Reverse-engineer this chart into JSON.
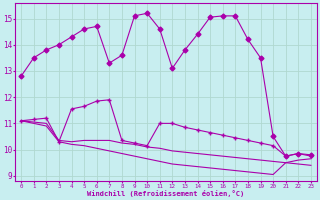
{
  "xlabel": "Windchill (Refroidissement éolien,°C)",
  "background_color": "#c8eef0",
  "grid_color": "#b0d8d0",
  "line_color": "#aa00aa",
  "xlim": [
    -0.5,
    23.5
  ],
  "ylim": [
    8.8,
    15.6
  ],
  "yticks": [
    9,
    10,
    11,
    12,
    13,
    14,
    15
  ],
  "xticks": [
    0,
    1,
    2,
    3,
    4,
    5,
    6,
    7,
    8,
    9,
    10,
    11,
    12,
    13,
    14,
    15,
    16,
    17,
    18,
    19,
    20,
    21,
    22,
    23
  ],
  "series1_x": [
    0,
    1,
    2,
    3,
    4,
    5,
    6,
    7,
    8,
    9,
    10,
    11,
    12,
    13,
    14,
    15,
    16,
    17,
    18,
    19,
    20,
    21,
    22,
    23
  ],
  "series1_y": [
    12.8,
    13.5,
    13.8,
    14.0,
    14.3,
    14.6,
    14.7,
    13.3,
    13.6,
    15.1,
    15.2,
    14.6,
    13.1,
    13.8,
    14.4,
    15.05,
    15.1,
    15.1,
    14.2,
    13.5,
    10.5,
    9.75,
    9.85,
    9.8
  ],
  "series2_x": [
    0,
    1,
    2,
    3,
    4,
    5,
    6,
    7,
    8,
    9,
    10,
    11,
    12,
    13,
    14,
    15,
    16,
    17,
    18,
    19,
    20,
    21,
    22,
    23
  ],
  "series2_y": [
    11.1,
    11.15,
    11.2,
    10.3,
    11.55,
    11.65,
    11.85,
    11.9,
    10.35,
    10.25,
    10.15,
    11.0,
    11.0,
    10.85,
    10.75,
    10.65,
    10.55,
    10.45,
    10.35,
    10.25,
    10.15,
    9.75,
    9.85,
    9.75
  ],
  "series3_x": [
    0,
    1,
    2,
    3,
    4,
    5,
    6,
    7,
    8,
    9,
    10,
    11,
    12,
    13,
    14,
    15,
    16,
    17,
    18,
    19,
    20,
    21,
    22,
    23
  ],
  "series3_y": [
    11.1,
    11.05,
    11.0,
    10.35,
    10.3,
    10.35,
    10.35,
    10.35,
    10.25,
    10.2,
    10.1,
    10.05,
    9.95,
    9.9,
    9.85,
    9.8,
    9.75,
    9.7,
    9.65,
    9.6,
    9.55,
    9.5,
    9.45,
    9.4
  ],
  "series4_x": [
    0,
    1,
    2,
    3,
    4,
    5,
    6,
    7,
    8,
    9,
    10,
    11,
    12,
    13,
    14,
    15,
    16,
    17,
    18,
    19,
    20,
    21,
    22,
    23
  ],
  "series4_y": [
    11.1,
    11.0,
    10.9,
    10.3,
    10.2,
    10.15,
    10.05,
    9.95,
    9.85,
    9.75,
    9.65,
    9.55,
    9.45,
    9.4,
    9.35,
    9.3,
    9.25,
    9.2,
    9.15,
    9.1,
    9.05,
    9.5,
    9.6,
    9.65
  ]
}
